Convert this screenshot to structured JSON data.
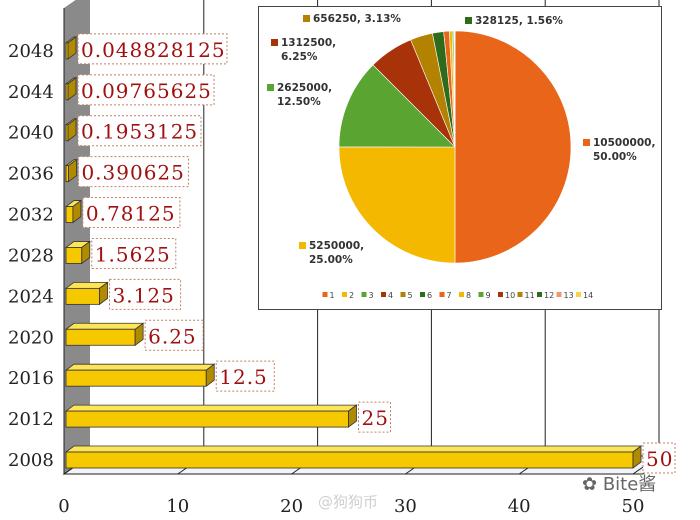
{
  "chart_data": [
    {
      "type": "bar",
      "orientation": "horizontal",
      "categories": [
        "2008",
        "2012",
        "2016",
        "2020",
        "2024",
        "2028",
        "2032",
        "2036",
        "2040",
        "2044",
        "2048"
      ],
      "values": [
        50,
        25,
        12.5,
        6.25,
        3.125,
        1.5625,
        0.78125,
        0.390625,
        0.1953125,
        0.09765625,
        0.048828125
      ],
      "data_labels": [
        "50",
        "25",
        "12.5",
        "6.25",
        "3.125",
        "1.5625",
        "0.78125",
        "0.390625",
        "0.1953125",
        "0.09765625",
        "0.048828125"
      ],
      "xlim": [
        0,
        50
      ],
      "x_ticks": [
        "0",
        "10",
        "20",
        "30",
        "40",
        "50"
      ],
      "grid": true,
      "style": "3d",
      "colors": {
        "bar_front": "#f5c800",
        "bar_top": "#fde55a",
        "bar_side": "#b08a00",
        "label_text": "#a01010",
        "label_border": "#c08060",
        "wall": "#8a8a8a"
      }
    },
    {
      "type": "pie",
      "slices": [
        {
          "label": "1",
          "value": 10500000,
          "percent": "50.00%",
          "text_value": "10500000,",
          "color": "#e8651a"
        },
        {
          "label": "2",
          "value": 5250000,
          "percent": "25.00%",
          "text_value": "5250000,",
          "color": "#f5b800"
        },
        {
          "label": "3",
          "value": 2625000,
          "percent": "12.50%",
          "text_value": "2625000,",
          "color": "#5aa532"
        },
        {
          "label": "4",
          "value": 1312500,
          "percent": "6.25%",
          "text_value": "1312500,",
          "color": "#a8320a"
        },
        {
          "label": "5",
          "value": 656250,
          "percent": "3.13%",
          "text_value": "656250, 3.13%",
          "color": "#b38200"
        },
        {
          "label": "6",
          "value": 328125,
          "percent": "1.56%",
          "text_value": "328125, 1.56%",
          "color": "#2e6b1a"
        },
        {
          "label": "7",
          "value": 164062.5,
          "color": "#e8651a"
        },
        {
          "label": "8",
          "value": 82031.25,
          "color": "#f5b800"
        },
        {
          "label": "9",
          "value": 41015.625,
          "color": "#5aa532"
        },
        {
          "label": "10",
          "value": 20507.8125,
          "color": "#a8320a"
        },
        {
          "label": "11",
          "value": 10253.90625,
          "color": "#b38200"
        },
        {
          "label": "12",
          "value": 5126.953125,
          "color": "#2e6b1a"
        },
        {
          "label": "13",
          "value": 2563.4765625,
          "color": "#f09870"
        },
        {
          "label": "14",
          "value": 1281.73828125,
          "color": "#f7d34a"
        }
      ],
      "legend_position": "bottom"
    }
  ],
  "watermark": "@狗狗币",
  "logo_text": "Bite酱"
}
